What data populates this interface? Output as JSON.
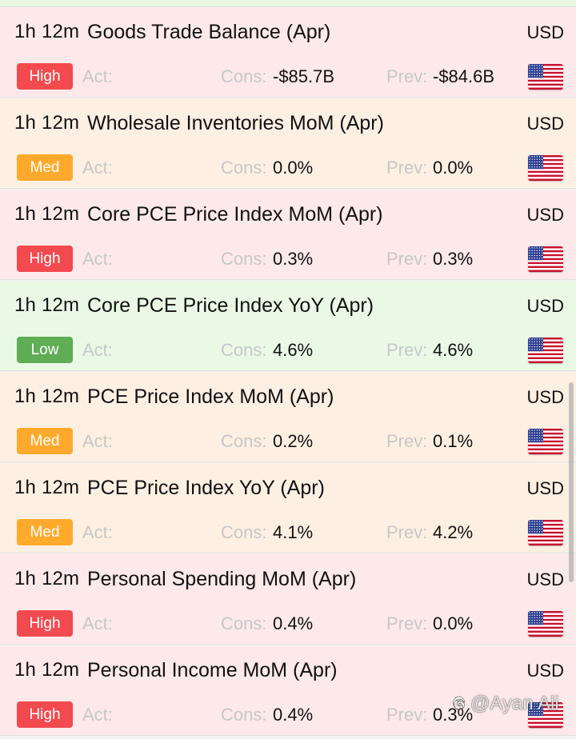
{
  "events": [
    {
      "time": "1h 12m",
      "title": "Goods Trade Balance (Apr)",
      "currency": "USD",
      "impact": "High",
      "impact_level": "high",
      "act_label": "Act:",
      "cons_label": "Cons:",
      "cons": "-$85.7B",
      "prev_label": "Prev:",
      "prev": "-$84.6B"
    },
    {
      "time": "1h 12m",
      "title": "Wholesale Inventories MoM (Apr)",
      "currency": "USD",
      "impact": "Med",
      "impact_level": "med",
      "act_label": "Act:",
      "cons_label": "Cons:",
      "cons": "0.0%",
      "prev_label": "Prev:",
      "prev": "0.0%"
    },
    {
      "time": "1h 12m",
      "title": "Core PCE Price Index MoM (Apr)",
      "currency": "USD",
      "impact": "High",
      "impact_level": "high",
      "act_label": "Act:",
      "cons_label": "Cons:",
      "cons": "0.3%",
      "prev_label": "Prev:",
      "prev": "0.3%"
    },
    {
      "time": "1h 12m",
      "title": "Core PCE Price Index YoY (Apr)",
      "currency": "USD",
      "impact": "Low",
      "impact_level": "low",
      "act_label": "Act:",
      "cons_label": "Cons:",
      "cons": "4.6%",
      "prev_label": "Prev:",
      "prev": "4.6%"
    },
    {
      "time": "1h 12m",
      "title": "PCE Price Index MoM (Apr)",
      "currency": "USD",
      "impact": "Med",
      "impact_level": "med",
      "act_label": "Act:",
      "cons_label": "Cons:",
      "cons": "0.2%",
      "prev_label": "Prev:",
      "prev": "0.1%"
    },
    {
      "time": "1h 12m",
      "title": "PCE Price Index YoY (Apr)",
      "currency": "USD",
      "impact": "Med",
      "impact_level": "med",
      "act_label": "Act:",
      "cons_label": "Cons:",
      "cons": "4.1%",
      "prev_label": "Prev:",
      "prev": "4.2%"
    },
    {
      "time": "1h 12m",
      "title": "Personal Spending MoM (Apr)",
      "currency": "USD",
      "impact": "High",
      "impact_level": "high",
      "act_label": "Act:",
      "cons_label": "Cons:",
      "cons": "0.4%",
      "prev_label": "Prev:",
      "prev": "0.0%"
    },
    {
      "time": "1h 12m",
      "title": "Personal Income MoM (Apr)",
      "currency": "USD",
      "impact": "High",
      "impact_level": "high",
      "act_label": "Act:",
      "cons_label": "Cons:",
      "cons": "0.4%",
      "prev_label": "Prev:",
      "prev": "0.3%"
    }
  ],
  "flag_icon": "us-flag-icon",
  "watermark": {
    "text": "@Ayan Ali",
    "icon": "threads-icon"
  },
  "colors": {
    "high_badge": "#f24a4f",
    "med_badge": "#ffaa2c",
    "low_badge": "#5fad55",
    "high_row": "#fde9ea",
    "med_row": "#fdf0e3",
    "low_row": "#e9f9e6"
  }
}
